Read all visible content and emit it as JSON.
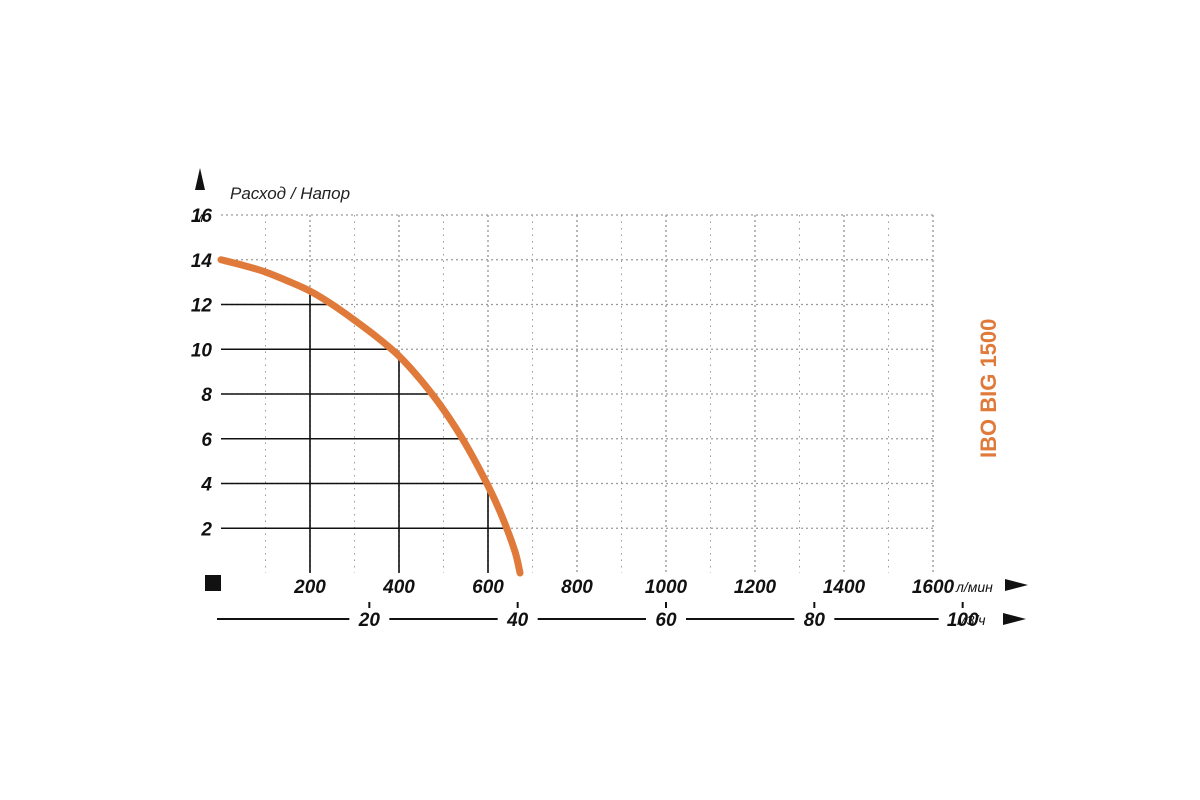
{
  "colors": {
    "curve": "#e07a3a",
    "ink": "#111111",
    "grid": "#9a9a9a"
  },
  "chart_data": {
    "type": "line",
    "title": "Расход / Напор",
    "model_label": "IBO BIG 1500",
    "y_unit": "м",
    "x_unit_lmin": "л/мин",
    "x_unit_m3h": "м3/ч",
    "y_ticks": [
      "2",
      "4",
      "6",
      "8",
      "10",
      "12",
      "14",
      "16"
    ],
    "x_ticks_lmin": [
      "200",
      "400",
      "600",
      "800",
      "1000",
      "1200",
      "1400",
      "1600"
    ],
    "x_ticks_m3h": [
      "20",
      "40",
      "60",
      "80",
      "100"
    ],
    "xlim_lmin": [
      0,
      1600
    ],
    "ylim": [
      0,
      16
    ],
    "grid": true,
    "series": [
      {
        "x": [
          0,
          50,
          100,
          150,
          200,
          250,
          300,
          350,
          400,
          450,
          500,
          550,
          600,
          630,
          660,
          672
        ],
        "y": [
          14,
          13.75,
          13.45,
          13.05,
          12.6,
          12.0,
          11.3,
          10.55,
          9.7,
          8.6,
          7.3,
          5.75,
          3.9,
          2.6,
          1.0,
          0
        ]
      }
    ],
    "reference_lines": [
      {
        "x": 200,
        "y": 12.6
      },
      {
        "x": 400,
        "y": 9.7
      },
      {
        "x": 600,
        "y": 3.9
      }
    ]
  }
}
